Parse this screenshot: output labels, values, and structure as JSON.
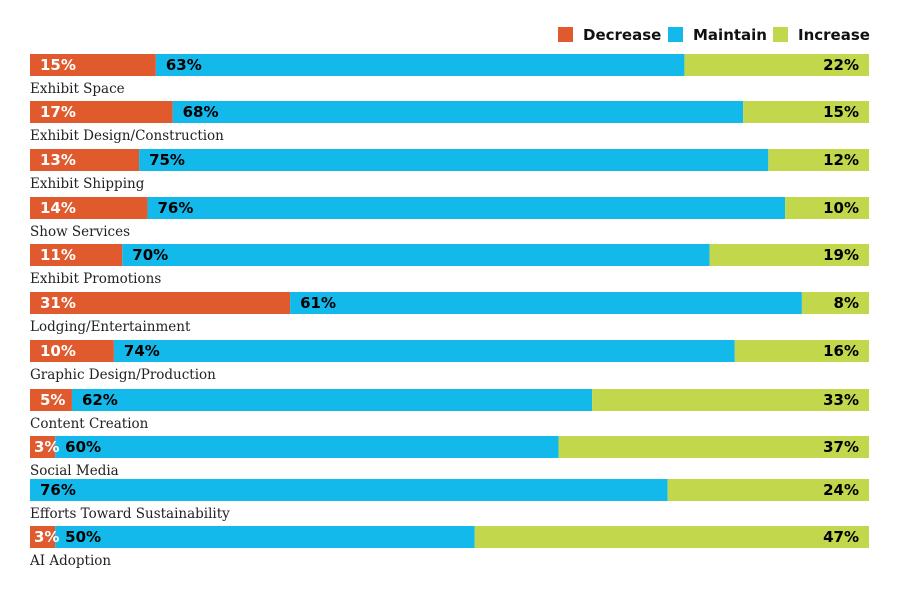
{
  "chart_data": {
    "type": "bar",
    "stacked": true,
    "orientation": "horizontal",
    "legend_position": "top-right",
    "xlim": [
      0,
      100
    ],
    "categories": [
      "Exhibit Space",
      "Exhibit Design/Construction",
      "Exhibit Shipping",
      "Show Services",
      "Exhibit Promotions",
      "Lodging/Entertainment",
      "Graphic Design/Production",
      "Content Creation",
      "Social Media",
      "Efforts Toward Sustainability",
      "AI Adoption"
    ],
    "series": [
      {
        "name": "Decrease",
        "color": "#e05a2e",
        "label_color": "#ffffff",
        "values": [
          15,
          17,
          13,
          14,
          11,
          31,
          10,
          5,
          3,
          0,
          3
        ]
      },
      {
        "name": "Maintain",
        "color": "#13b9ea",
        "label_color": "#000000",
        "values": [
          63,
          68,
          75,
          76,
          70,
          61,
          74,
          62,
          60,
          76,
          50
        ]
      },
      {
        "name": "Increase",
        "color": "#c2d74b",
        "label_color": "#000000",
        "values": [
          22,
          15,
          12,
          10,
          19,
          8,
          16,
          33,
          37,
          24,
          47
        ]
      }
    ],
    "value_suffix": "%"
  }
}
